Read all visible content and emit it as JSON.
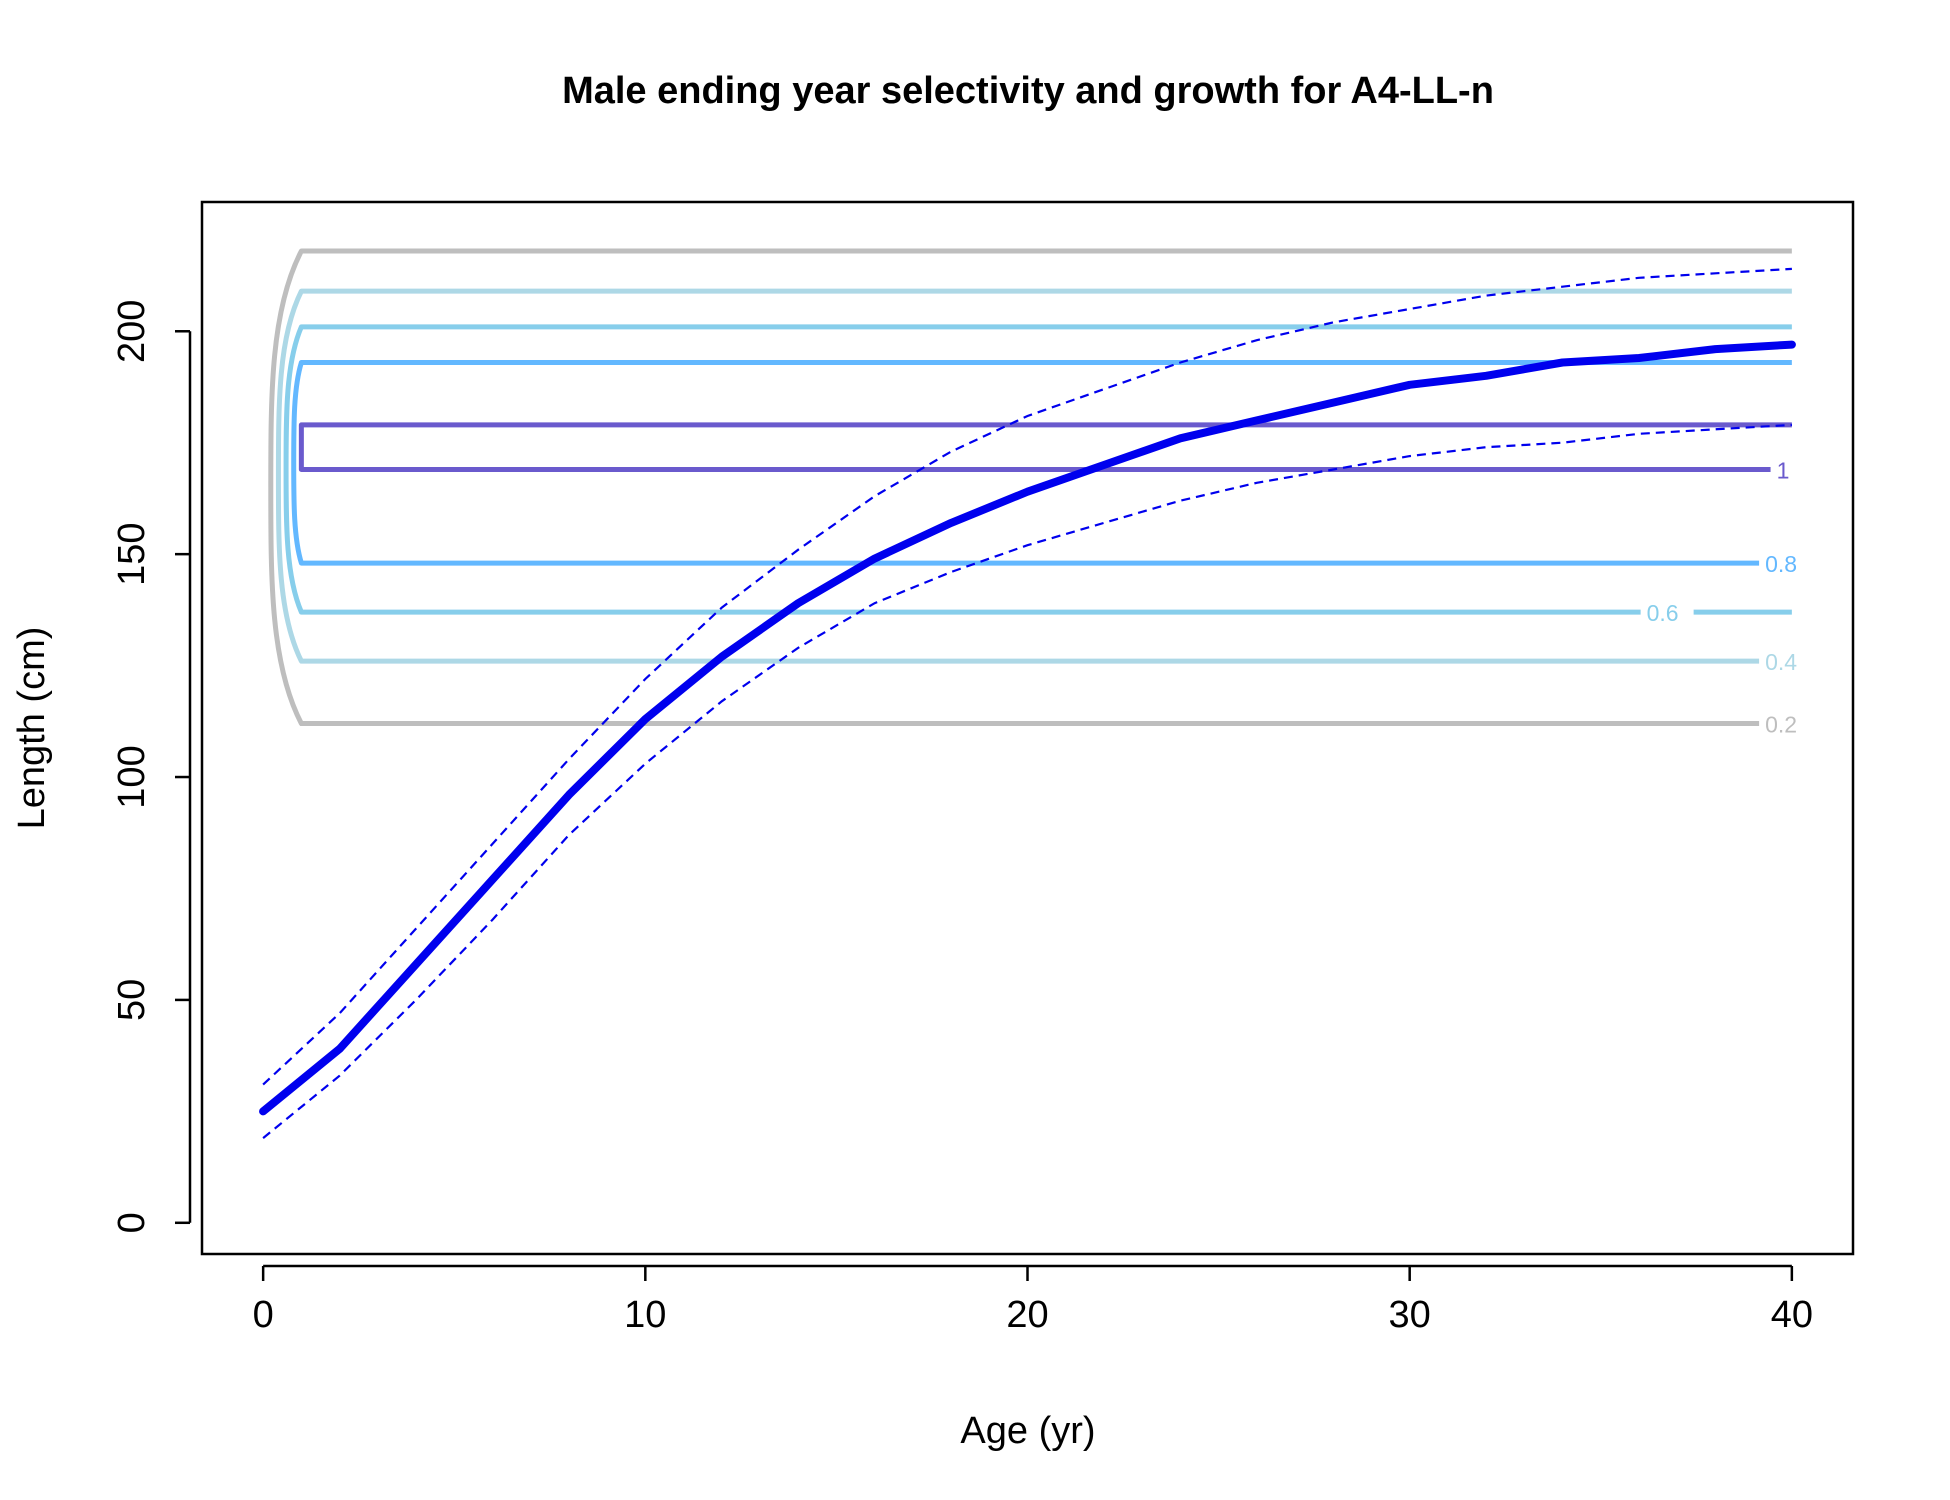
{
  "chart_data": {
    "type": "line",
    "title": "Male ending year selectivity and growth for A4-LL-n",
    "xlabel": "Age (yr)",
    "ylabel": "Length (cm)",
    "xlim": [
      -1.6,
      41.6
    ],
    "ylim": [
      -7,
      229
    ],
    "x_ticks": [
      0,
      10,
      20,
      30,
      40
    ],
    "y_ticks": [
      0,
      50,
      100,
      150,
      200
    ],
    "grid": false,
    "legend": "none",
    "growth_colors": {
      "mean": "#0000EE",
      "interval": "#0000EE"
    },
    "growth": {
      "name": "",
      "x": [
        0,
        2,
        4,
        6,
        8,
        10,
        12,
        14,
        16,
        18,
        20,
        22,
        24,
        26,
        28,
        30,
        32,
        34,
        36,
        38,
        40
      ],
      "mean": [
        25,
        39,
        58,
        77,
        96,
        113,
        127,
        139,
        149,
        157,
        164,
        170,
        176,
        180,
        184,
        188,
        190,
        193,
        194,
        196,
        197
      ],
      "upper": [
        31,
        47,
        66,
        85,
        104,
        122,
        138,
        151,
        163,
        173,
        181,
        187,
        193,
        198,
        202,
        205,
        208,
        210,
        212,
        213,
        214
      ],
      "lower": [
        19,
        33,
        50,
        68,
        87,
        103,
        117,
        129,
        139,
        146,
        152,
        157,
        162,
        166,
        169,
        172,
        174,
        175,
        177,
        178,
        179
      ]
    },
    "selectivity_contours": [
      {
        "level": "0.2",
        "color": "#BEBEBE",
        "y_low": 112,
        "y_high": 218,
        "x_start": 1,
        "x_end": 40,
        "x_left": 0.2,
        "label_x": 39.3,
        "label_row": "low"
      },
      {
        "level": "0.4",
        "color": "#ADD8E6",
        "y_low": 126,
        "y_high": 209,
        "x_start": 1,
        "x_end": 40,
        "x_left": 0.4,
        "label_x": 39.3,
        "label_row": "low"
      },
      {
        "level": "0.6",
        "color": "#87CEEB",
        "y_low": 137,
        "y_high": 201,
        "x_start": 1,
        "x_end": 40,
        "x_left": 0.6,
        "label_x": 36.2,
        "label_row": "low"
      },
      {
        "level": "0.8",
        "color": "#63B8FF",
        "y_low": 148,
        "y_high": 193,
        "x_start": 1,
        "x_end": 40,
        "x_left": 0.8,
        "label_x": 39.3,
        "label_row": "low"
      },
      {
        "level": "1",
        "color": "#6A5ACD",
        "y_low": 169,
        "y_high": 179,
        "x_start": 1,
        "x_end": 40,
        "x_left": 1,
        "label_x": 39.6,
        "label_row": "low"
      }
    ]
  }
}
